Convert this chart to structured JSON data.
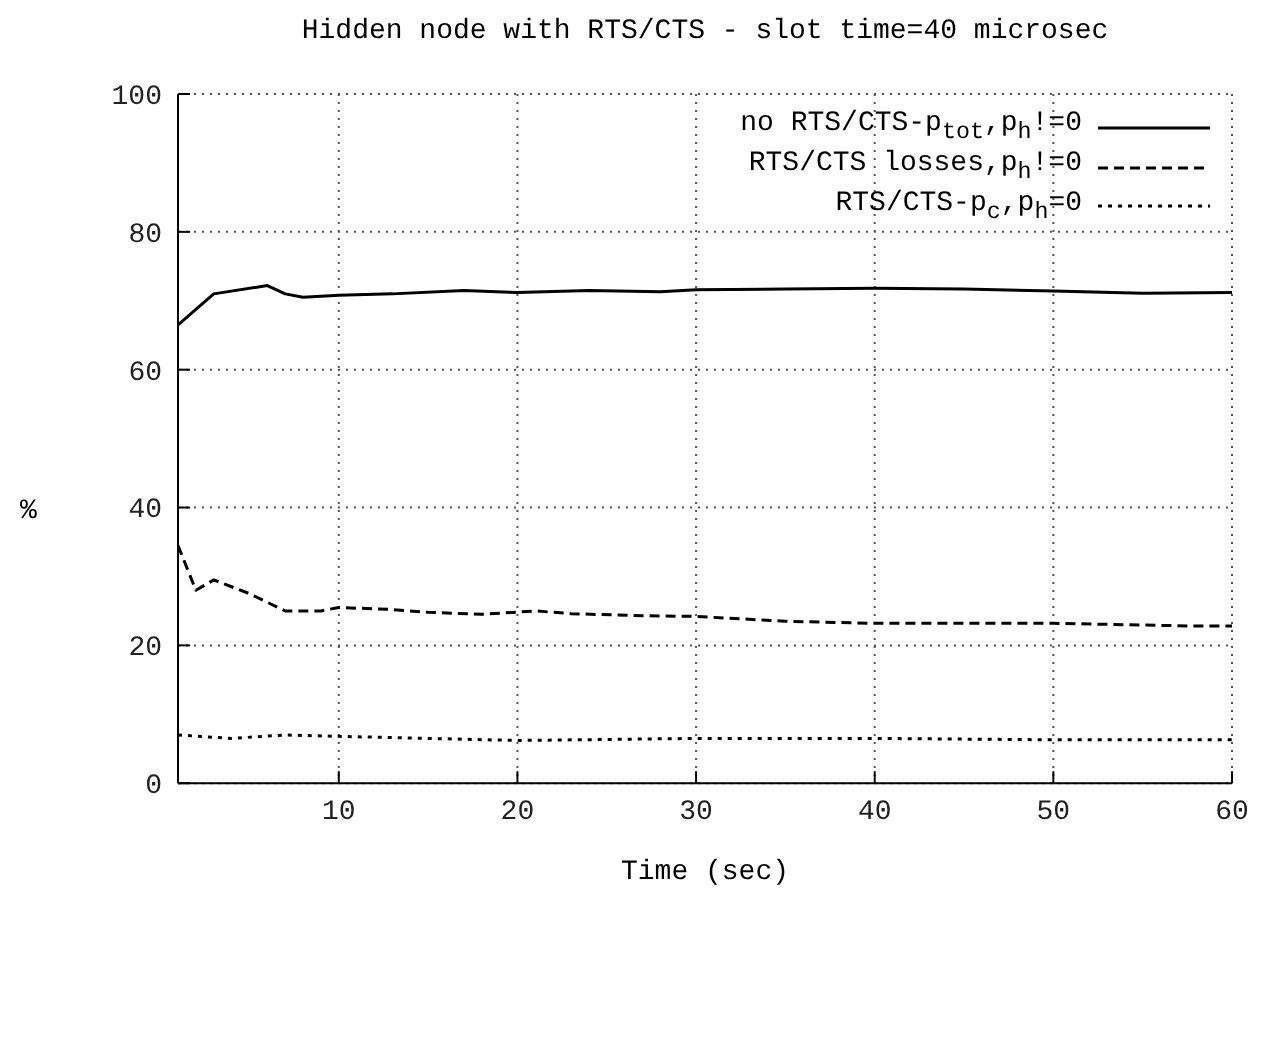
{
  "chart_data": {
    "type": "line",
    "title": "Hidden node with RTS/CTS - slot time=40 microsec",
    "xlabel": "Time (sec)",
    "ylabel": "%",
    "xlim": [
      1,
      60
    ],
    "xticks": [
      10,
      20,
      30,
      40,
      50,
      60
    ],
    "ylim": [
      0,
      100
    ],
    "yticks": [
      0,
      20,
      40,
      60,
      80,
      100
    ],
    "grid": true,
    "legend": "top right",
    "marker": "none",
    "series": [
      {
        "name": "no RTS/CTS-p$_{tot}$,p$_{h}$!=0",
        "color": "#000000",
        "line_style": "solid",
        "x": [
          1,
          3,
          6,
          7,
          8,
          10,
          13,
          17,
          20,
          24,
          28,
          30,
          35,
          40,
          45,
          50,
          55,
          60
        ],
        "values": [
          66.5,
          71,
          72.2,
          71,
          70.5,
          70.8,
          71,
          71.5,
          71.2,
          71.5,
          71.3,
          71.6,
          71.7,
          71.8,
          71.7,
          71.4,
          71.1,
          71.2
        ]
      },
      {
        "name": "RTS/CTS losses,p$_{h}$!=0",
        "color": "#000000",
        "line_style": "dashed",
        "x": [
          1,
          2,
          3,
          5,
          7,
          9,
          10,
          13,
          15,
          18,
          21,
          23,
          27,
          30,
          35,
          40,
          50,
          58,
          60
        ],
        "values": [
          34.5,
          28,
          29.5,
          27.5,
          25,
          25,
          25.5,
          25.2,
          24.8,
          24.5,
          25,
          24.6,
          24.3,
          24.2,
          23.5,
          23.2,
          23.2,
          22.8,
          22.8
        ]
      },
      {
        "name": "RTS/CTS-p$_{c}$,p$_{h}$=0",
        "color": "#000000",
        "line_style": "dotted",
        "x": [
          1,
          4,
          7,
          10,
          20,
          30,
          40,
          50,
          60
        ],
        "values": [
          7,
          6.5,
          7,
          6.8,
          6.2,
          6.5,
          6.5,
          6.3,
          6.3
        ]
      }
    ]
  }
}
